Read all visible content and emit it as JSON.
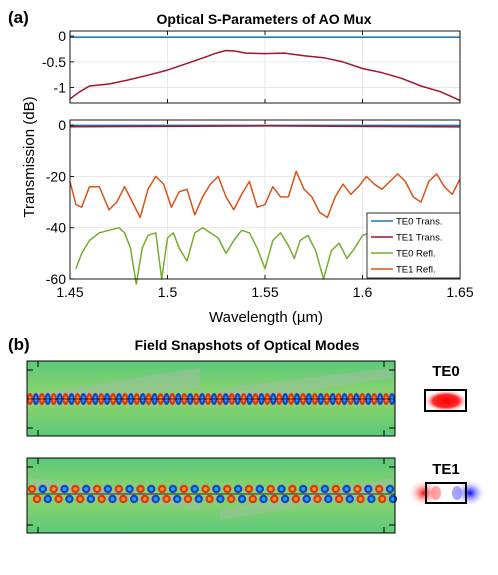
{
  "panel_a": {
    "label": "(a)",
    "title": "Optical S-Parameters of AO Mux",
    "ylabel": "Transmission (dB)",
    "xlabel": "Wavelength (µm)",
    "legend": [
      "TE0 Trans.",
      "TE1 Trans.",
      "TE0 Refl.",
      "TE1 Refl."
    ],
    "colors": {
      "te0_trans": "#1f77b4",
      "te1_trans": "#a2142f",
      "te0_refl": "#77ac30",
      "te1_refl": "#d95319"
    }
  },
  "panel_b": {
    "label": "(b)",
    "title": "Field Snapshots of Optical Modes",
    "mode_labels": [
      "TE0",
      "TE1"
    ]
  },
  "chart_data": [
    {
      "type": "line",
      "subplot": "top",
      "xlim": [
        1.45,
        1.65
      ],
      "ylim": [
        -1.3,
        0.1
      ],
      "yticks": [
        0,
        -0.5,
        -1
      ],
      "ytick_labels": [
        "0",
        "-0.5",
        "-1"
      ],
      "grid": true,
      "series": [
        {
          "name": "TE0 Trans.",
          "x": [
            1.45,
            1.65
          ],
          "y": [
            -0.02,
            -0.02
          ]
        },
        {
          "name": "TE1 Trans.",
          "x": [
            1.45,
            1.455,
            1.46,
            1.47,
            1.48,
            1.49,
            1.5,
            1.51,
            1.52,
            1.525,
            1.53,
            1.535,
            1.54,
            1.55,
            1.56,
            1.57,
            1.58,
            1.59,
            1.6,
            1.61,
            1.62,
            1.63,
            1.64,
            1.65
          ],
          "y": [
            -1.22,
            -1.08,
            -0.97,
            -0.93,
            -0.85,
            -0.76,
            -0.66,
            -0.53,
            -0.4,
            -0.33,
            -0.28,
            -0.29,
            -0.33,
            -0.34,
            -0.33,
            -0.38,
            -0.42,
            -0.5,
            -0.63,
            -0.71,
            -0.82,
            -0.97,
            -1.08,
            -1.25
          ]
        }
      ]
    },
    {
      "type": "line",
      "subplot": "bottom",
      "xlim": [
        1.45,
        1.65
      ],
      "ylim": [
        -60,
        2
      ],
      "xticks": [
        1.45,
        1.5,
        1.55,
        1.6,
        1.65
      ],
      "xtick_labels": [
        "1.45",
        "1.5",
        "1.55",
        "1.6",
        "1.65"
      ],
      "yticks": [
        0,
        -20,
        -40,
        -60
      ],
      "ytick_labels": [
        "0",
        "-20",
        "-40",
        "-60"
      ],
      "grid": true,
      "legend_position": "bottom-right",
      "series": [
        {
          "name": "TE0 Trans.",
          "x": [
            1.45,
            1.65
          ],
          "y": [
            -0.1,
            -0.1
          ]
        },
        {
          "name": "TE1 Trans.",
          "x": [
            1.45,
            1.55,
            1.65
          ],
          "y": [
            -0.6,
            -0.3,
            -0.7
          ]
        },
        {
          "name": "TE0 Refl.",
          "x": [
            1.453,
            1.456,
            1.46,
            1.465,
            1.47,
            1.475,
            1.478,
            1.481,
            1.484,
            1.487,
            1.49,
            1.494,
            1.497,
            1.5,
            1.503,
            1.506,
            1.51,
            1.514,
            1.518,
            1.522,
            1.526,
            1.53,
            1.534,
            1.538,
            1.542,
            1.546,
            1.55,
            1.554,
            1.558,
            1.562,
            1.565,
            1.568,
            1.572,
            1.576,
            1.58,
            1.584,
            1.588,
            1.592,
            1.596,
            1.6,
            1.604,
            1.608,
            1.612,
            1.616,
            1.62,
            1.625,
            1.63,
            1.635,
            1.64,
            1.645,
            1.65
          ],
          "y": [
            -56,
            -50,
            -45,
            -42,
            -41,
            -40,
            -42,
            -48,
            -62,
            -48,
            -43,
            -42,
            -60,
            -44,
            -42,
            -48,
            -53,
            -42,
            -40,
            -42,
            -44,
            -50,
            -45,
            -41,
            -42,
            -48,
            -56,
            -45,
            -42,
            -47,
            -52,
            -45,
            -43,
            -49,
            -60,
            -49,
            -46,
            -52,
            -48,
            -43,
            -42,
            -46,
            -53,
            -47,
            -42,
            -48,
            -57,
            -46,
            -42,
            -48,
            -55
          ]
        },
        {
          "name": "TE1 Refl.",
          "x": [
            1.45,
            1.453,
            1.456,
            1.46,
            1.465,
            1.47,
            1.474,
            1.478,
            1.482,
            1.486,
            1.49,
            1.494,
            1.498,
            1.502,
            1.506,
            1.51,
            1.514,
            1.518,
            1.522,
            1.526,
            1.53,
            1.534,
            1.538,
            1.542,
            1.546,
            1.55,
            1.554,
            1.558,
            1.562,
            1.566,
            1.57,
            1.574,
            1.578,
            1.582,
            1.586,
            1.59,
            1.594,
            1.598,
            1.602,
            1.606,
            1.61,
            1.614,
            1.618,
            1.622,
            1.626,
            1.63,
            1.634,
            1.638,
            1.642,
            1.646,
            1.65
          ],
          "y": [
            -22,
            -31,
            -32,
            -24,
            -24,
            -33,
            -30,
            -24,
            -30,
            -36,
            -25,
            -20,
            -23,
            -32,
            -26,
            -25,
            -35,
            -28,
            -23,
            -20,
            -28,
            -33,
            -27,
            -22,
            -32,
            -31,
            -24,
            -28,
            -28,
            -18,
            -25,
            -28,
            -34,
            -36,
            -28,
            -23,
            -27,
            -24,
            -20,
            -23,
            -25,
            -22,
            -19,
            -22,
            -28,
            -30,
            -22,
            -19,
            -24,
            -27,
            -21
          ]
        }
      ]
    }
  ]
}
